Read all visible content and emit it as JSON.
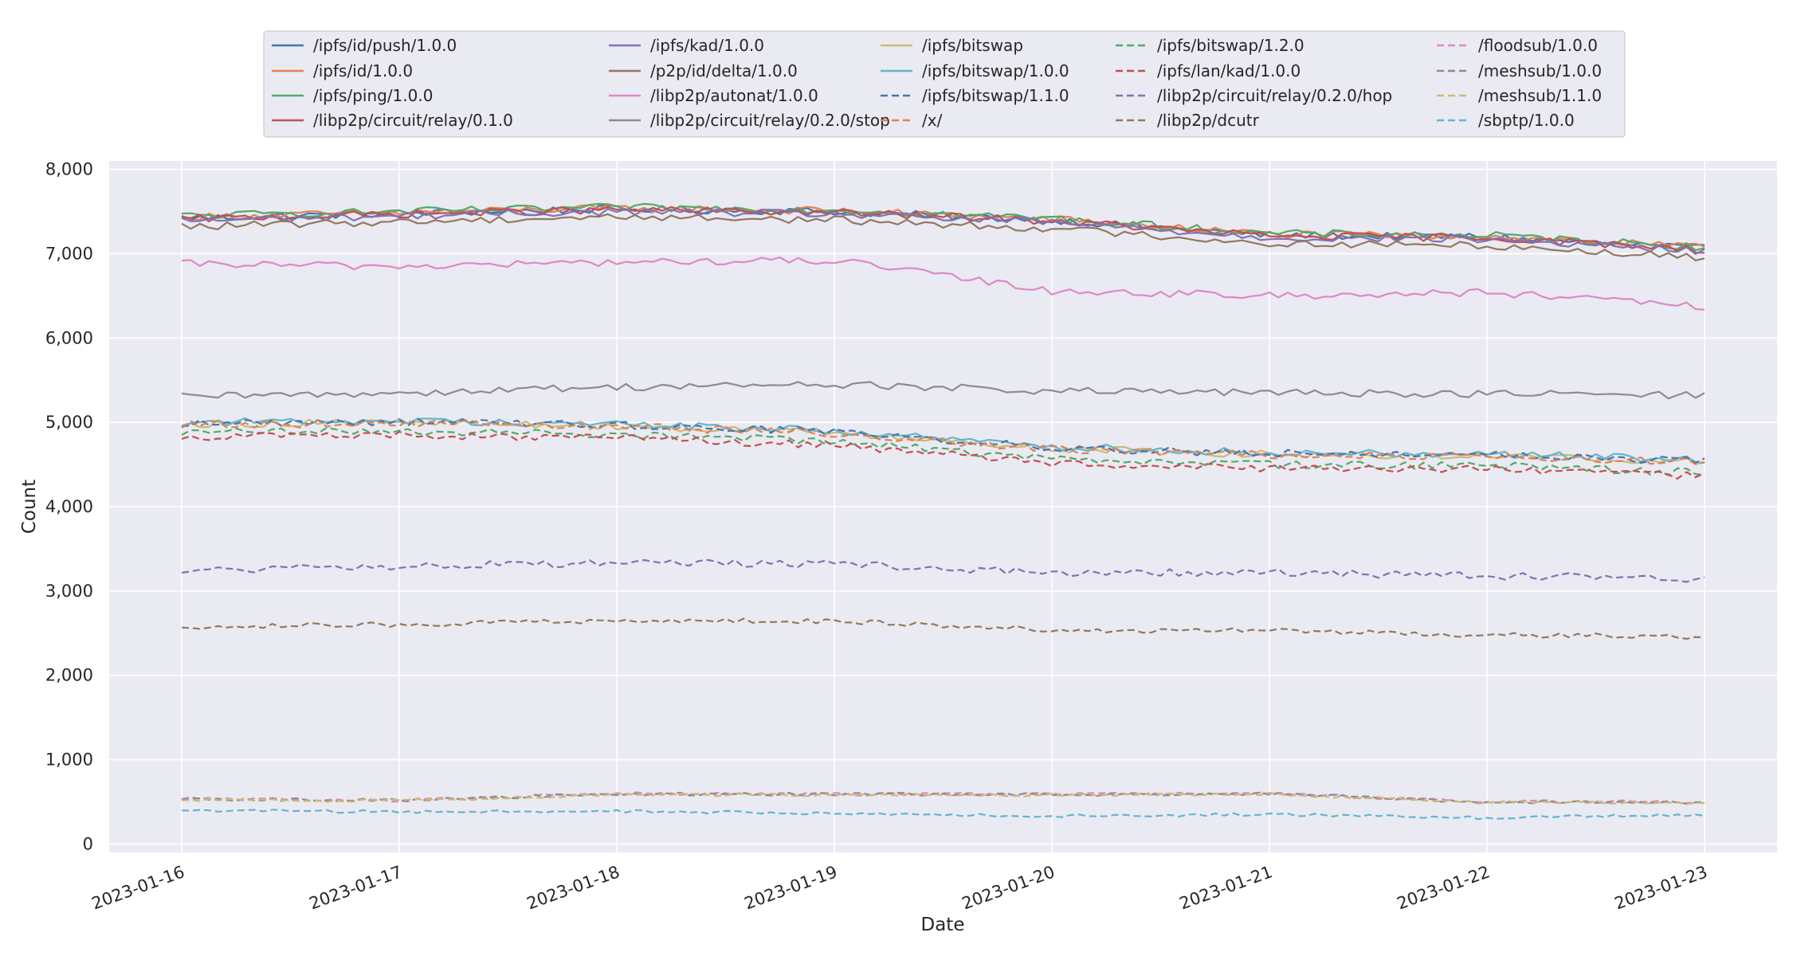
{
  "chart_data": {
    "type": "line",
    "xlabel": "Date",
    "ylabel": "Count",
    "xlim": [
      "2023-01-15T16:00",
      "2023-01-23T08:00"
    ],
    "ylim": [
      -100,
      8100
    ],
    "x_ticks": [
      "2023-01-16",
      "2023-01-17",
      "2023-01-18",
      "2023-01-19",
      "2023-01-20",
      "2023-01-21",
      "2023-01-22",
      "2023-01-23"
    ],
    "y_ticks": [
      0,
      1000,
      2000,
      3000,
      4000,
      5000,
      6000,
      7000,
      8000
    ],
    "y_tick_labels": [
      "0",
      "1,000",
      "2,000",
      "3,000",
      "4,000",
      "5,000",
      "6,000",
      "7,000",
      "8,000"
    ],
    "grid": true,
    "legend_position": "top-center",
    "x_dates": [
      "2023-01-16",
      "2023-01-17",
      "2023-01-18",
      "2023-01-19",
      "2023-01-20",
      "2023-01-21",
      "2023-01-22",
      "2023-01-23"
    ],
    "series": [
      {
        "name": "/ipfs/id/push/1.0.0",
        "color": "#4c72b0",
        "dash": "solid",
        "values": [
          7420,
          7480,
          7530,
          7500,
          7400,
          7220,
          7200,
          7060
        ]
      },
      {
        "name": "/ipfs/id/1.0.0",
        "color": "#dd8452",
        "dash": "solid",
        "values": [
          7430,
          7490,
          7540,
          7510,
          7410,
          7230,
          7210,
          7070
        ]
      },
      {
        "name": "/ipfs/ping/1.0.0",
        "color": "#55a868",
        "dash": "solid",
        "values": [
          7450,
          7500,
          7550,
          7520,
          7420,
          7240,
          7220,
          7080
        ]
      },
      {
        "name": "/libp2p/circuit/relay/0.1.0",
        "color": "#c44e52",
        "dash": "solid",
        "values": [
          7410,
          7470,
          7520,
          7490,
          7390,
          7210,
          7190,
          7050
        ]
      },
      {
        "name": "/ipfs/kad/1.0.0",
        "color": "#8172b3",
        "dash": "solid",
        "values": [
          7390,
          7450,
          7500,
          7470,
          7370,
          7190,
          7170,
          7030
        ]
      },
      {
        "name": "/p2p/id/delta/1.0.0",
        "color": "#937860",
        "dash": "solid",
        "values": [
          7320,
          7380,
          7440,
          7400,
          7300,
          7120,
          7100,
          6950
        ]
      },
      {
        "name": "/libp2p/autonat/1.0.0",
        "color": "#da8bc3",
        "dash": "solid",
        "values": [
          6880,
          6850,
          6900,
          6920,
          6560,
          6500,
          6540,
          6370
        ]
      },
      {
        "name": "/libp2p/circuit/relay/0.2.0/stop",
        "color": "#8c8c8c",
        "dash": "solid",
        "values": [
          5300,
          5350,
          5420,
          5450,
          5370,
          5350,
          5340,
          5320
        ]
      },
      {
        "name": "/ipfs/bitswap",
        "color": "#ccb974",
        "dash": "solid",
        "values": [
          4980,
          5000,
          4960,
          4880,
          4690,
          4620,
          4610,
          4530
        ]
      },
      {
        "name": "/ipfs/bitswap/1.0.0",
        "color": "#64b5cd",
        "dash": "solid",
        "values": [
          5000,
          5020,
          4980,
          4900,
          4710,
          4640,
          4630,
          4550
        ]
      },
      {
        "name": "/ipfs/bitswap/1.1.0",
        "color": "#4c72b0",
        "dash": "dashed",
        "values": [
          4990,
          5010,
          4970,
          4890,
          4700,
          4630,
          4620,
          4540
        ]
      },
      {
        "name": "/x/",
        "color": "#dd8452",
        "dash": "dashed",
        "values": [
          4970,
          4990,
          4950,
          4870,
          4680,
          4610,
          4600,
          4520
        ]
      },
      {
        "name": "/ipfs/bitswap/1.2.0",
        "color": "#55a868",
        "dash": "dashed",
        "values": [
          4880,
          4900,
          4860,
          4780,
          4570,
          4500,
          4490,
          4400
        ]
      },
      {
        "name": "/ipfs/lan/kad/1.0.0",
        "color": "#c44e52",
        "dash": "dashed",
        "values": [
          4830,
          4850,
          4810,
          4730,
          4520,
          4450,
          4440,
          4360
        ]
      },
      {
        "name": "/libp2p/circuit/relay/0.2.0/hop",
        "color": "#8172b3",
        "dash": "dashed",
        "values": [
          3240,
          3290,
          3340,
          3320,
          3220,
          3220,
          3180,
          3150
        ]
      },
      {
        "name": "/libp2p/dcutr",
        "color": "#937860",
        "dash": "dashed",
        "values": [
          2580,
          2600,
          2650,
          2640,
          2540,
          2530,
          2480,
          2460
        ]
      },
      {
        "name": "/floodsub/1.0.0",
        "color": "#da8bc3",
        "dash": "dashed",
        "values": [
          540,
          520,
          600,
          590,
          590,
          600,
          500,
          500
        ]
      },
      {
        "name": "/meshsub/1.0.0",
        "color": "#8c8c8c",
        "dash": "dashed",
        "values": [
          530,
          520,
          595,
          590,
          585,
          595,
          495,
          495
        ]
      },
      {
        "name": "/meshsub/1.1.0",
        "color": "#ccb974",
        "dash": "dashed",
        "values": [
          520,
          510,
          590,
          580,
          580,
          590,
          490,
          490
        ]
      },
      {
        "name": "/sbptp/1.0.0",
        "color": "#64b5cd",
        "dash": "dashed",
        "values": [
          400,
          380,
          390,
          360,
          330,
          350,
          310,
          350
        ]
      }
    ]
  }
}
